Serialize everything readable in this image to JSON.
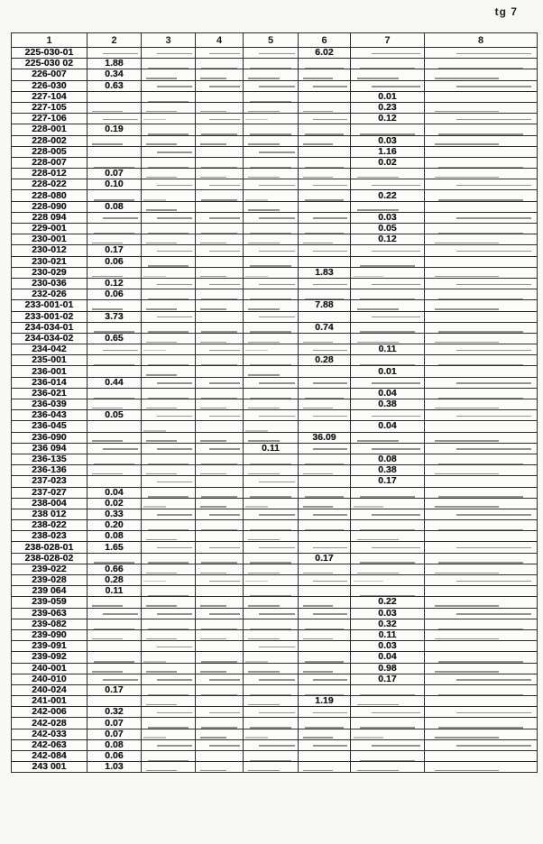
{
  "page": {
    "corner_label": "tg 7"
  },
  "table": {
    "headers": [
      "1",
      "2",
      "3",
      "4",
      "5",
      "6",
      "7",
      "8"
    ],
    "rows": [
      [
        "225-030-01",
        "",
        "",
        "",
        "",
        "6.02",
        "",
        ""
      ],
      [
        "225-030 02",
        "1.88",
        "",
        "",
        "",
        "",
        "",
        ""
      ],
      [
        "226-007",
        "0.34",
        "",
        "",
        "",
        "",
        "",
        ""
      ],
      [
        "226-030",
        "0.63",
        "",
        "",
        "",
        "",
        "",
        ""
      ],
      [
        "227-104",
        "",
        "",
        "",
        "",
        "",
        "0.01",
        ""
      ],
      [
        "227-105",
        "",
        "",
        "",
        "",
        "",
        "0.23",
        ""
      ],
      [
        "227-106",
        "",
        "",
        "",
        "",
        "",
        "0.12",
        ""
      ],
      [
        "228-001",
        "0.19",
        "",
        "",
        "",
        "",
        "",
        ""
      ],
      [
        "228-002",
        "",
        "",
        "",
        "",
        "",
        "0.03",
        ""
      ],
      [
        "228-005",
        "",
        "",
        "",
        "",
        "",
        "1.16",
        ""
      ],
      [
        "228-007",
        "",
        "",
        "",
        "",
        "",
        "0.02",
        ""
      ],
      [
        "228-012",
        "0.07",
        "",
        "",
        "",
        "",
        "",
        ""
      ],
      [
        "228-022",
        "0.10",
        "",
        "",
        "",
        "",
        "",
        ""
      ],
      [
        "228-080",
        "",
        "",
        "",
        "",
        "",
        "0.22",
        ""
      ],
      [
        "228-090",
        "0.08",
        "",
        "",
        "",
        "",
        "",
        ""
      ],
      [
        "228 094",
        "",
        "",
        "",
        "",
        "",
        "0.03",
        ""
      ],
      [
        "229-001",
        "",
        "",
        "",
        "",
        "",
        "0.05",
        ""
      ],
      [
        "230-001",
        "",
        "",
        "",
        "",
        "",
        "0.12",
        ""
      ],
      [
        "230-012",
        "0.17",
        "",
        "",
        "",
        "",
        "",
        ""
      ],
      [
        "230-021",
        "0.06",
        "",
        "",
        "",
        "",
        "",
        ""
      ],
      [
        "230-029",
        "",
        "",
        "",
        "",
        "1.83",
        "",
        ""
      ],
      [
        "230-036",
        "0.12",
        "",
        "",
        "",
        "",
        "",
        ""
      ],
      [
        "232-026",
        "0.06",
        "",
        "",
        "",
        "",
        "",
        ""
      ],
      [
        "233-001-01",
        "",
        "",
        "",
        "",
        "7.88",
        "",
        ""
      ],
      [
        "233-001-02",
        "3.73",
        "",
        "",
        "",
        "",
        "",
        ""
      ],
      [
        "234-034-01",
        "",
        "",
        "",
        "",
        "0.74",
        "",
        ""
      ],
      [
        "234-034-02",
        "0.65",
        "",
        "",
        "",
        "",
        "",
        ""
      ],
      [
        "234-042",
        "",
        "",
        "",
        "",
        "",
        "0.11",
        ""
      ],
      [
        "235-001",
        "",
        "",
        "",
        "",
        "0.28",
        "",
        ""
      ],
      [
        "236-001",
        "",
        "",
        "",
        "",
        "",
        "0.01",
        ""
      ],
      [
        "236-014",
        "0.44",
        "",
        "",
        "",
        "",
        "",
        ""
      ],
      [
        "236-021",
        "",
        "",
        "",
        "",
        "",
        "0.04",
        ""
      ],
      [
        "236-039",
        "",
        "",
        "",
        "",
        "",
        "0.38",
        ""
      ],
      [
        "236-043",
        "0.05",
        "",
        "",
        "",
        "",
        "",
        ""
      ],
      [
        "236-045",
        "",
        "",
        "",
        "",
        "",
        "0.04",
        ""
      ],
      [
        "236-090",
        "",
        "",
        "",
        "",
        "36.09",
        "",
        ""
      ],
      [
        "236 094",
        "",
        "",
        "",
        "0.11",
        "",
        "",
        ""
      ],
      [
        "236-135",
        "",
        "",
        "",
        "",
        "",
        "0.08",
        ""
      ],
      [
        "236-136",
        "",
        "",
        "",
        "",
        "",
        "0.38",
        ""
      ],
      [
        "237-023",
        "",
        "",
        "",
        "",
        "",
        "0.17",
        ""
      ],
      [
        "237-027",
        "0.04",
        "",
        "",
        "",
        "",
        "",
        ""
      ],
      [
        "238-004",
        "0.02",
        "",
        "",
        "",
        "",
        "",
        ""
      ],
      [
        "238 012",
        "0.33",
        "",
        "",
        "",
        "",
        "",
        ""
      ],
      [
        "238-022",
        "0.20",
        "",
        "",
        "",
        "",
        "",
        ""
      ],
      [
        "238-023",
        "0.08",
        "",
        "",
        "",
        "",
        "",
        ""
      ],
      [
        "238-028-01",
        "1.65",
        "",
        "",
        "",
        "",
        "",
        ""
      ],
      [
        "238-028-02",
        "",
        "",
        "",
        "",
        "0.17",
        "",
        ""
      ],
      [
        "239-022",
        "0.66",
        "",
        "",
        "",
        "",
        "",
        ""
      ],
      [
        "239-028",
        "0.28",
        "",
        "",
        "",
        "",
        "",
        ""
      ],
      [
        "239 064",
        "0.11",
        "",
        "",
        "",
        "",
        "",
        ""
      ],
      [
        "239-059",
        "",
        "",
        "",
        "",
        "",
        "0.22",
        ""
      ],
      [
        "239-063",
        "",
        "",
        "",
        "",
        "",
        "0.03",
        ""
      ],
      [
        "239-082",
        "",
        "",
        "",
        "",
        "",
        "0.32",
        ""
      ],
      [
        "239-090",
        "",
        "",
        "",
        "",
        "",
        "0.11",
        ""
      ],
      [
        "239-091",
        "",
        "",
        "",
        "",
        "",
        "0.03",
        ""
      ],
      [
        "239-092",
        "",
        "",
        "",
        "",
        "",
        "0.04",
        ""
      ],
      [
        "240-001",
        "",
        "",
        "",
        "",
        "",
        "0.98",
        ""
      ],
      [
        "240-010",
        "",
        "",
        "",
        "",
        "",
        "0.17",
        ""
      ],
      [
        "240-024",
        "0.17",
        "",
        "",
        "",
        "",
        "",
        ""
      ],
      [
        "241-001",
        "",
        "",
        "",
        "",
        "1.19",
        "",
        ""
      ],
      [
        "242-006",
        "0.32",
        "",
        "",
        "",
        "",
        "",
        ""
      ],
      [
        "242-028",
        "0.07",
        "",
        "",
        "",
        "",
        "",
        ""
      ],
      [
        "242-033",
        "0.07",
        "",
        "",
        "",
        "",
        "",
        ""
      ],
      [
        "242-063",
        "0.08",
        "",
        "",
        "",
        "",
        "",
        ""
      ],
      [
        "242-084",
        "0.06",
        "",
        "",
        "",
        "",
        "",
        ""
      ],
      [
        "243 001",
        "1.03",
        "",
        "",
        "",
        "",
        "",
        ""
      ]
    ]
  }
}
